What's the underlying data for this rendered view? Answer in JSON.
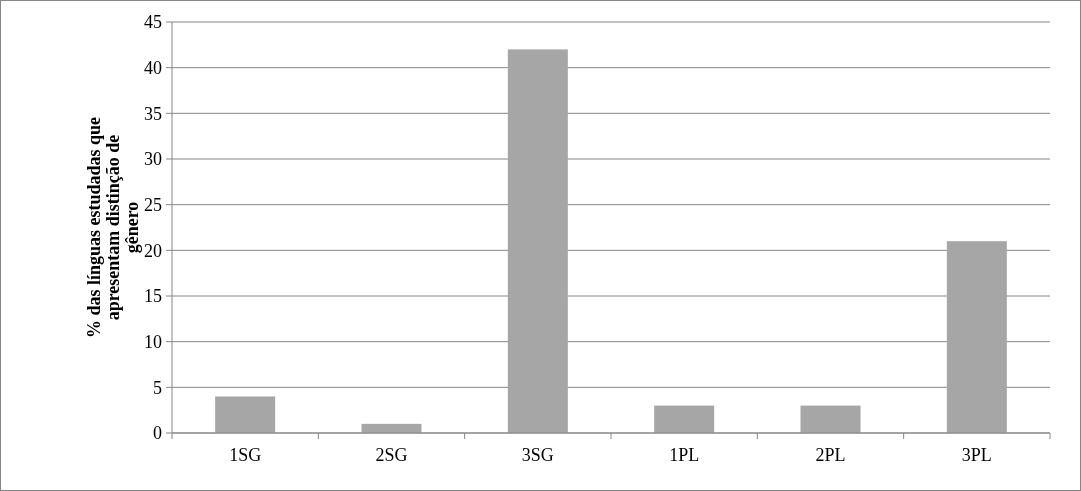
{
  "chart_data": {
    "type": "bar",
    "ylabel": "% das línguas estudadas que\napresentam distinção de\ngênero",
    "categories": [
      "1SG",
      "2SG",
      "3SG",
      "1PL",
      "2PL",
      "3PL"
    ],
    "values": [
      4,
      1,
      42,
      3,
      3,
      21
    ],
    "color": "#a6a6a6",
    "ylim": [
      0,
      45
    ],
    "yticks": [
      0,
      5,
      10,
      15,
      20,
      25,
      30,
      35,
      40,
      45
    ],
    "grid": "y"
  }
}
